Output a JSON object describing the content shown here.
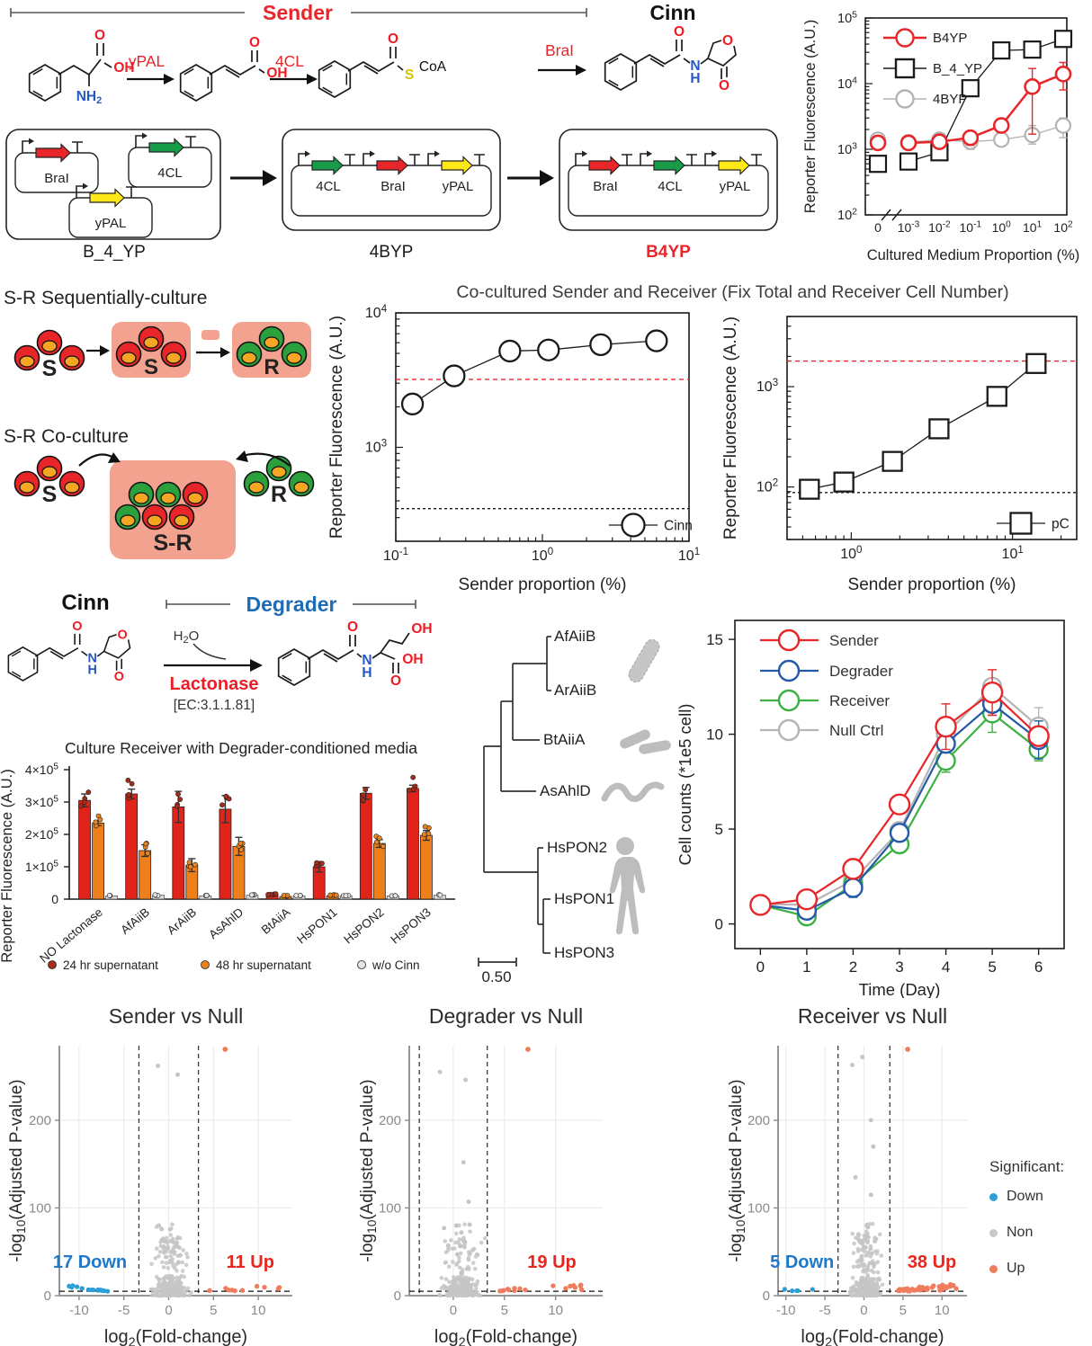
{
  "colors": {
    "accent_red": "#e8262a",
    "degrader_blue": "#1f6cb5",
    "gene_green": "#169c48",
    "gene_yellow": "#ffe817",
    "pink": "#f2a28e",
    "volcano_up": "#ef7d5d",
    "volcano_down": "#2b9fd8",
    "silhouette_gray": "#bdbdbd",
    "yolk_orange": "#f5a623"
  },
  "top": {
    "sender_bracket": "Sender",
    "cinn_label": "Cinn",
    "enzymes": [
      "yPAL",
      "4CL",
      "BraI"
    ],
    "atoms": {
      "o": "O",
      "oh": "OH",
      "nh": "NH",
      "two": "2",
      "s": "S",
      "coa": "CoA",
      "n": "N",
      "h": "H"
    }
  },
  "plasmids": {
    "items": [
      {
        "name": "B_4_YP",
        "name_color": "#1a1a1a",
        "layout": "separate",
        "genes": [
          {
            "label": "BraI",
            "color": "#e8262a"
          },
          {
            "label": "4CL",
            "color": "#169c48"
          },
          {
            "label": "yPAL",
            "color": "#ffe817"
          }
        ]
      },
      {
        "name": "4BYP",
        "name_color": "#1a1a1a",
        "layout": "single",
        "genes": [
          {
            "label": "4CL",
            "color": "#169c48"
          },
          {
            "label": "BraI",
            "color": "#e8262a"
          },
          {
            "label": "yPAL",
            "color": "#ffe817"
          }
        ]
      },
      {
        "name": "B4YP",
        "name_color": "#e8262a",
        "layout": "single",
        "genes": [
          {
            "label": "BraI",
            "color": "#e8262a"
          },
          {
            "label": "4CL",
            "color": "#169c48"
          },
          {
            "label": "yPAL",
            "color": "#ffe817"
          }
        ]
      }
    ]
  },
  "sr": {
    "seq_title": "S-R Sequentially-culture",
    "co_title": "S-R Co-culture",
    "s": "S",
    "r": "R",
    "sr": "S-R"
  },
  "coculture_title": "Co-cultured Sender and Receiver (Fix Total and Receiver Cell Number)",
  "degrader": {
    "cinn": "Cinn",
    "bracket": "Degrader",
    "water_h": "H",
    "water_two": "2",
    "water_o": "O",
    "enzyme": "Lactonase",
    "ec": "[EC:3.1.1.81]"
  },
  "tree": {
    "taxa": [
      "AfAiiB",
      "ArAiiB",
      "BtAiiA",
      "AsAhlD",
      "HsPON2",
      "HsPON1",
      "HsPON3"
    ],
    "scale": "0.50"
  },
  "volcano_legend": {
    "title": "Significant:",
    "items": [
      {
        "label": "Down",
        "color": "#2b9fd8"
      },
      {
        "label": "Non",
        "color": "#c8c8c8"
      },
      {
        "label": "Up",
        "color": "#ef7d5d"
      }
    ]
  },
  "chart_data": [
    {
      "type": "scatter",
      "x_scale": "log-with-zero-break",
      "xlabel": "Cultured Medium Proportion (%)",
      "ylabel": "Reporter Fluorescence (A.U.)",
      "x_tick_labels": [
        "0",
        "10^-3",
        "10^-2",
        "10^-1",
        "10^0",
        "10^1",
        "10^2"
      ],
      "y_tick_labels": [
        "10^2",
        "10^3",
        "10^4",
        "10^5"
      ],
      "ylim": [
        100,
        100000
      ],
      "series": [
        {
          "name": "4BYP",
          "color": "#b3b3b3",
          "marker": "circle",
          "values": [
            1400,
            1280,
            1400,
            1300,
            1400,
            1650,
            2300
          ],
          "err_lo": [
            1200,
            1150,
            1200,
            1000,
            1150,
            1200,
            1500
          ],
          "err_hi": [
            1650,
            1500,
            1650,
            1700,
            1700,
            2300,
            3000
          ]
        },
        {
          "name": "B_4_YP",
          "color": "#1a1a1a",
          "marker": "square",
          "values": [
            600,
            650,
            900,
            8500,
            32000,
            33000,
            48000
          ],
          "err_lo": [
            480,
            520,
            750,
            7500,
            26000,
            26000,
            44000
          ],
          "err_hi": [
            750,
            820,
            1100,
            9800,
            40000,
            40000,
            52000
          ]
        },
        {
          "name": "B4YP",
          "color": "#e8262a",
          "marker": "circle",
          "values": [
            1250,
            1250,
            1300,
            1500,
            2300,
            9000,
            14000
          ],
          "err_lo": [
            1100,
            1000,
            1150,
            1150,
            1800,
            1700,
            8000
          ],
          "err_hi": [
            1450,
            1600,
            1500,
            1900,
            2900,
            17000,
            21000
          ]
        }
      ],
      "legend_order": [
        "B4YP",
        "B_4_YP",
        "4BYP"
      ]
    },
    {
      "type": "scatter",
      "legend": "Cinn",
      "marker": "circle",
      "xlabel": "Sender proportion (%)",
      "ylabel": "Reporter Fluorescence (A.U.)",
      "xlim": [
        0.1,
        10
      ],
      "ylim": [
        200,
        10000
      ],
      "xticks": [
        "10^-1",
        "10^0",
        "10^1"
      ],
      "yticks": [
        "10^3",
        "10^4"
      ],
      "x": [
        0.13,
        0.25,
        0.6,
        1.1,
        2.5,
        6
      ],
      "y": [
        2100,
        3400,
        5200,
        5300,
        5800,
        6200
      ],
      "err_lo": [
        1850,
        3250,
        4850,
        4600,
        5450,
        5850
      ],
      "err_hi": [
        2350,
        3600,
        5550,
        5900,
        6150,
        6600
      ],
      "ref_lines": [
        {
          "y": 3200,
          "color": "#e8262a"
        },
        {
          "y": 350,
          "color": "#1a1a1a",
          "dash": "3,3"
        }
      ]
    },
    {
      "type": "scatter",
      "legend": "pC",
      "marker": "square",
      "xlabel": "Sender proportion (%)",
      "ylabel": "Reporter Fluorescence (A.U.)",
      "xlim": [
        0.4,
        25
      ],
      "ylim": [
        30,
        5000
      ],
      "xticks": [
        "10^0",
        "10^1"
      ],
      "yticks": [
        "10^2",
        "10^3"
      ],
      "x": [
        0.55,
        0.9,
        1.8,
        3.5,
        8,
        14
      ],
      "y": [
        95,
        112,
        180,
        380,
        800,
        1700
      ],
      "err_lo": [
        80,
        96,
        160,
        315,
        665,
        1420
      ],
      "err_hi": [
        113,
        130,
        202,
        455,
        960,
        2040
      ],
      "ref_lines": [
        {
          "y": 1800,
          "color": "#e8262a"
        },
        {
          "y": 88,
          "color": "#1a1a1a",
          "dash": "3,3"
        }
      ]
    },
    {
      "type": "bar",
      "title": "Culture Receiver with Degrader-conditioned media",
      "ylabel": "Reporter Fluorescence (A.U.)",
      "categories": [
        "NO Lactonase",
        "AfAiiB",
        "ArAiiB",
        "AsAhlD",
        "BtAiiA",
        "HsPON1",
        "HsPON2",
        "HsPON3"
      ],
      "ylim": [
        0,
        400000
      ],
      "yticks": {
        "values": [
          0,
          100000,
          200000,
          300000,
          400000
        ],
        "labels": [
          "0",
          "1×10^5",
          "2×10^5",
          "3×10^5",
          "4×10^5"
        ]
      },
      "series": [
        {
          "name": "24 hr supernatant",
          "color": "#e2231a",
          "dot": "#a62c1a",
          "values": [
            305000,
            325000,
            285000,
            278000,
            13000,
            100000,
            327000,
            342000
          ],
          "err": [
            20000,
            15000,
            48000,
            42000,
            4000,
            16000,
            18000,
            10000
          ]
        },
        {
          "name": "48 hr supernatant",
          "color": "#ef7f1a",
          "dot": "#e8831f",
          "values": [
            235000,
            150000,
            105000,
            163000,
            8000,
            10000,
            172000,
            197000
          ],
          "err": [
            8000,
            18000,
            20000,
            28000,
            3000,
            4000,
            12000,
            15000
          ]
        },
        {
          "name": "w/o Cinn",
          "color": "#dcdcdc",
          "dot": "#e3e3e3",
          "values": [
            10000,
            12000,
            10000,
            12000,
            10000,
            10000,
            10000,
            12000
          ],
          "err": [
            0,
            0,
            0,
            0,
            0,
            0,
            0,
            0
          ]
        }
      ]
    },
    {
      "type": "line",
      "xlabel": "Time (Day)",
      "ylabel": "Cell counts (*1e5 cell)",
      "x": [
        0,
        1,
        2,
        3,
        4,
        5,
        6
      ],
      "ylim": [
        0,
        16
      ],
      "yticks": [
        0,
        5,
        10,
        15
      ],
      "series": [
        {
          "name": "Sender",
          "color": "#e8262a",
          "values": [
            1.0,
            1.3,
            2.9,
            6.3,
            10.4,
            12.2,
            9.9
          ],
          "err": [
            0.1,
            0.3,
            0.4,
            0.3,
            1.2,
            1.2,
            0.5
          ]
        },
        {
          "name": "Degrader",
          "color": "#2458a8",
          "values": [
            1.0,
            0.7,
            1.9,
            4.8,
            9.5,
            11.6,
            9.7
          ],
          "err": [
            0.1,
            0.4,
            0.5,
            0.3,
            0.4,
            0.6,
            1.0
          ]
        },
        {
          "name": "Receiver",
          "color": "#3cb043",
          "values": [
            1.0,
            0.4,
            2.1,
            4.2,
            8.6,
            11.1,
            9.2
          ],
          "err": [
            0.1,
            0.3,
            0.2,
            0.4,
            0.6,
            1.0,
            0.6
          ]
        },
        {
          "name": "Null Ctrl",
          "color": "#b5b5b5",
          "values": [
            1.05,
            1.0,
            2.3,
            4.9,
            10.0,
            12.5,
            10.4
          ],
          "err": [
            0.1,
            0.2,
            0.2,
            0.3,
            0.4,
            0.3,
            1.0
          ]
        }
      ]
    },
    {
      "type": "volcano-set",
      "axis": {
        "y_pre": "-log",
        "y_sub": "10",
        "y_post": "(Adjusted P-value)",
        "x_pre": "log",
        "x_sub": "2",
        "x_post": "(Fold-change)"
      },
      "items": [
        {
          "title": "Sender vs Null",
          "xlim": [
            -12.2,
            13.8
          ],
          "xticks": [
            -10,
            -5,
            0,
            5,
            10
          ],
          "yticks": [
            0,
            100,
            200
          ],
          "down_count": 17,
          "up_count": 11,
          "down_label": "17 Down",
          "up_label": "11 Up",
          "fc_threshold": 3.32,
          "p_threshold": 5
        },
        {
          "title": "Degrader vs Null",
          "xlim": [
            -4.3,
            14.6
          ],
          "xticks": [
            0,
            5,
            10
          ],
          "yticks": [
            0,
            100,
            200
          ],
          "down_count": 0,
          "up_count": 19,
          "down_label": "",
          "up_label": "19 Up",
          "fc_threshold": 3.32,
          "p_threshold": 5
        },
        {
          "title": "Receiver vs Null",
          "xlim": [
            -11,
            13.2
          ],
          "xticks": [
            -10,
            -5,
            0,
            5,
            10
          ],
          "yticks": [
            0,
            100,
            200
          ],
          "down_count": 5,
          "up_count": 38,
          "down_label": "5 Down",
          "up_label": "38 Up",
          "fc_threshold": 3.32,
          "p_threshold": 5
        }
      ]
    }
  ]
}
